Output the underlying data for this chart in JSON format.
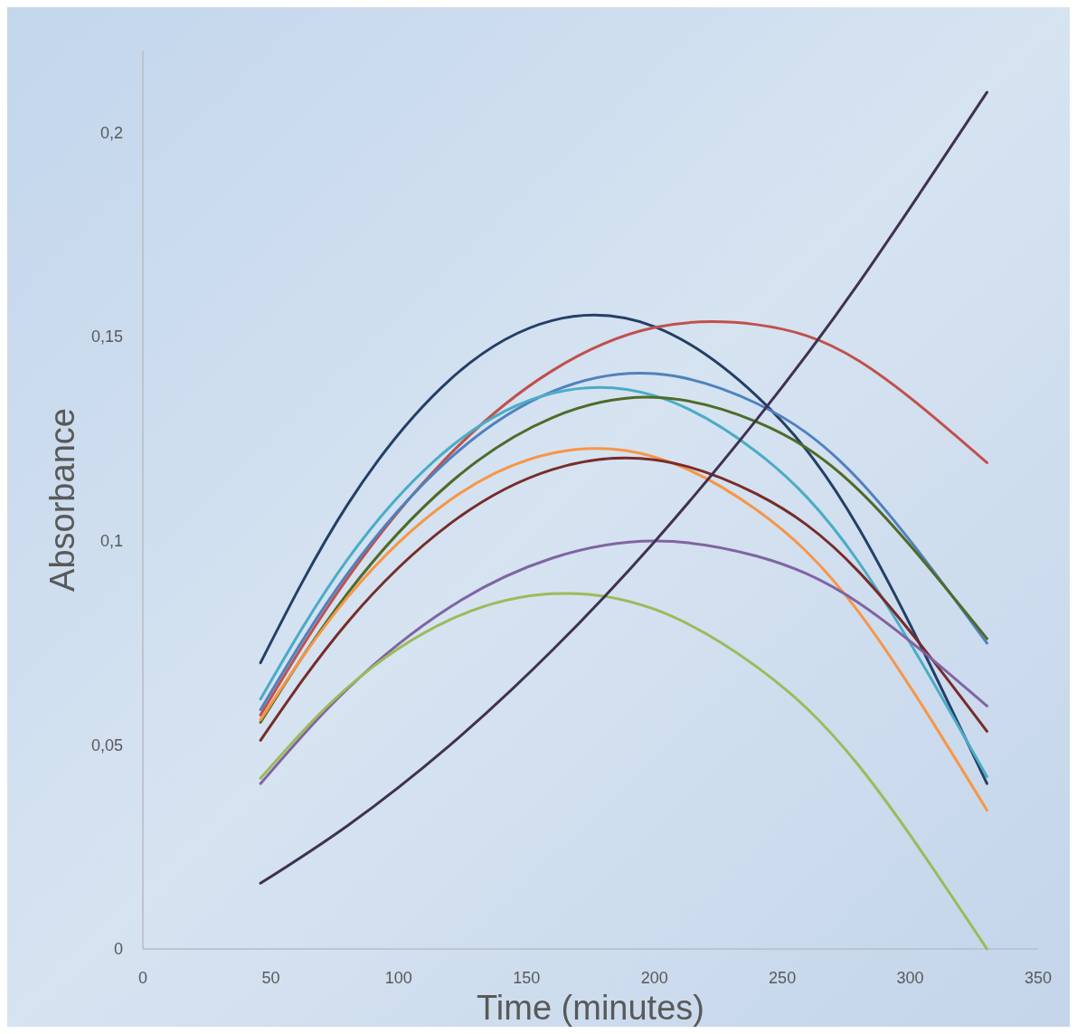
{
  "chart_data": {
    "type": "line",
    "xlabel": "Time (minutes)",
    "ylabel": "Absorbance",
    "x": [
      46,
      80,
      120,
      160,
      200,
      240,
      280,
      330
    ],
    "xlim": [
      0,
      350
    ],
    "xticks": [
      0,
      50,
      100,
      150,
      200,
      250,
      300,
      350
    ],
    "ylim": [
      0,
      0.22
    ],
    "yticks": [
      0,
      {
        "value": 0.05,
        "label": "0,05"
      },
      {
        "value": 0.1,
        "label": "0,1"
      },
      {
        "value": 0.15,
        "label": "0,15"
      },
      {
        "value": 0.2,
        "label": "0,2"
      }
    ],
    "line_style": "solid",
    "series": [
      {
        "color": "#243f66",
        "values": [
          0.0701,
          0.1088,
          0.1394,
          0.1539,
          0.1524,
          0.1354,
          0.1029,
          0.0405
        ]
      },
      {
        "color": "#c0504d",
        "values": [
          0.0573,
          0.0908,
          0.1211,
          0.1416,
          0.1522,
          0.1529,
          0.144,
          0.1191
        ]
      },
      {
        "color": "#4f81bd",
        "values": [
          0.0586,
          0.0919,
          0.1201,
          0.1365,
          0.1409,
          0.1336,
          0.1148,
          0.0749
        ]
      },
      {
        "color": "#4bacc6",
        "values": [
          0.0612,
          0.0954,
          0.1228,
          0.1361,
          0.1355,
          0.1217,
          0.0946,
          0.0422
        ]
      },
      {
        "color": "#4f6b28",
        "values": [
          0.0555,
          0.0871,
          0.1141,
          0.1301,
          0.1351,
          0.1291,
          0.1123,
          0.076
        ]
      },
      {
        "color": "#f79646",
        "values": [
          0.0561,
          0.0861,
          0.1099,
          0.1214,
          0.1205,
          0.1075,
          0.0824,
          0.034
        ]
      },
      {
        "color": "#772c2a",
        "values": [
          0.0511,
          0.08,
          0.1041,
          0.1174,
          0.1198,
          0.1114,
          0.0923,
          0.0533
        ]
      },
      {
        "color": "#8064a2",
        "values": [
          0.0405,
          0.0637,
          0.0837,
          0.0957,
          0.0999,
          0.0962,
          0.0847,
          0.0595
        ]
      },
      {
        "color": "#9bbb59",
        "values": [
          0.0418,
          0.064,
          0.0806,
          0.087,
          0.0832,
          0.0691,
          0.0448,
          0
        ]
      },
      {
        "color": "#403152",
        "values": [
          0.0161,
          0.0302,
          0.0499,
          0.0731,
          0.0997,
          0.1297,
          0.1632,
          0.2098
        ]
      }
    ]
  }
}
